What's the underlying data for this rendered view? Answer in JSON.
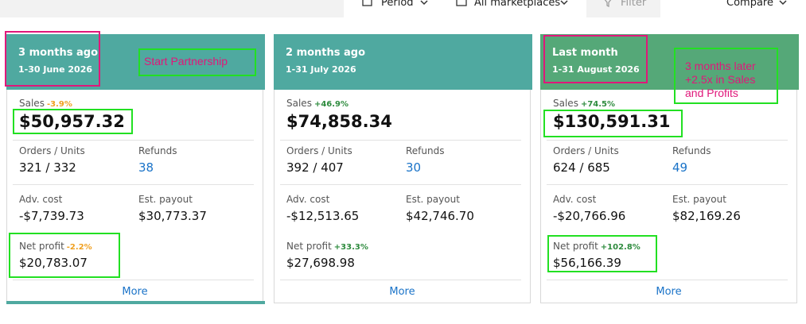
{
  "toolbar": {
    "period": "Period",
    "marketplaces": "All marketplaces",
    "filter": "Filter",
    "compare": "Compare"
  },
  "cards": [
    {
      "title": "3 months ago",
      "date": "1-30 June 2026",
      "sales_label": "Sales",
      "sales_change": "-3.9%",
      "sales": "$50,957.32",
      "orders_label": "Orders / Units",
      "orders": "321 / 332",
      "refunds_label": "Refunds",
      "refunds": "38",
      "adv_label": "Adv. cost",
      "adv": "-$7,739.73",
      "payout_label": "Est. payout",
      "payout": "$30,773.37",
      "profit_label": "Net profit",
      "profit_change": "-2.2%",
      "profit": "$20,783.07",
      "more": "More"
    },
    {
      "title": "2 months ago",
      "date": "1-31 July 2026",
      "sales_label": "Sales",
      "sales_change": "+46.9%",
      "sales": "$74,858.34",
      "orders_label": "Orders / Units",
      "orders": "392 / 407",
      "refunds_label": "Refunds",
      "refunds": "30",
      "adv_label": "Adv. cost",
      "adv": "-$12,513.65",
      "payout_label": "Est. payout",
      "payout": "$42,746.70",
      "profit_label": "Net profit",
      "profit_change": "+33.3%",
      "profit": "$27,698.98",
      "more": "More"
    },
    {
      "title": "Last month",
      "date": "1-31 August 2026",
      "sales_label": "Sales",
      "sales_change": "+74.5%",
      "sales": "$130,591.31",
      "orders_label": "Orders / Units",
      "orders": "624 / 685",
      "refunds_label": "Refunds",
      "refunds": "49",
      "adv_label": "Adv. cost",
      "adv": "-$20,766.96",
      "payout_label": "Est. payout",
      "payout": "$82,169.26",
      "profit_label": "Net profit",
      "profit_change": "+102.8%",
      "profit": "$56,166.39",
      "more": "More"
    }
  ],
  "annotations": {
    "start": "Start Partnership",
    "later": [
      "3 months later",
      "+2.5x in Sales",
      "and Profits"
    ]
  }
}
